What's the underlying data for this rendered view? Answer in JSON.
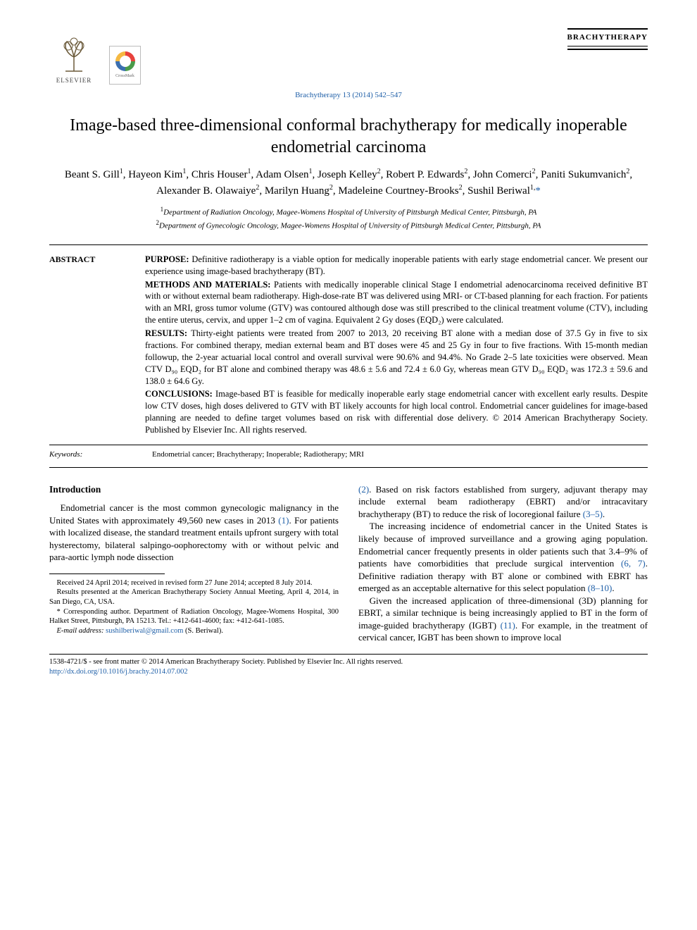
{
  "header": {
    "publisher_logo_text": "ELSEVIER",
    "crossmark_label": "CrossMark",
    "journal_banner": "BRACHYTHERAPY",
    "citation": "Brachytherapy 13 (2014) 542–547"
  },
  "title": "Image-based three-dimensional conformal brachytherapy for medically inoperable endometrial carcinoma",
  "authors_html": "Beant S. Gill<sup>1</sup>, Hayeon Kim<sup>1</sup>, Chris Houser<sup>1</sup>, Adam Olsen<sup>1</sup>, Joseph Kelley<sup>2</sup>, Robert P. Edwards<sup>2</sup>, John Comerci<sup>2</sup>, Paniti Sukumvanich<sup>2</sup>, Alexander B. Olawaiye<sup>2</sup>, Marilyn Huang<sup>2</sup>, Madeleine Courtney-Brooks<sup>2</sup>, Sushil Beriwal<sup>1,</sup><span class=\"star-corr\">*</span>",
  "affiliations": [
    {
      "num": "1",
      "text": "Department of Radiation Oncology, Magee-Womens Hospital of University of Pittsburgh Medical Center, Pittsburgh, PA"
    },
    {
      "num": "2",
      "text": "Department of Gynecologic Oncology, Magee-Womens Hospital of University of Pittsburgh Medical Center, Pittsburgh, PA"
    }
  ],
  "abstract": {
    "label": "ABSTRACT",
    "purpose": "Definitive radiotherapy is a viable option for medically inoperable patients with early stage endometrial cancer. We present our experience using image-based brachytherapy (BT).",
    "methods": "Patients with medically inoperable clinical Stage I endometrial adenocarcinoma received definitive BT with or without external beam radiotherapy. High-dose-rate BT was delivered using MRI- or CT-based planning for each fraction. For patients with an MRI, gross tumor volume (GTV) was contoured although dose was still prescribed to the clinical treatment volume (CTV), including the entire uterus, cervix, and upper 1–2 cm of vagina. Equivalent 2 Gy doses (EQD₂) were calculated.",
    "results": "Thirty-eight patients were treated from 2007 to 2013, 20 receiving BT alone with a median dose of 37.5 Gy in five to six fractions. For combined therapy, median external beam and BT doses were 45 and 25 Gy in four to five fractions. With 15-month median followup, the 2-year actuarial local control and overall survival were 90.6% and 94.4%. No Grade 2–5 late toxicities were observed. Mean CTV D₉₀ EQD₂ for BT alone and combined therapy was 48.6 ± 5.6 and 72.4 ± 6.0 Gy, whereas mean GTV D₉₀ EQD₂ was 172.3 ± 59.6 and 138.0 ± 64.6 Gy.",
    "conclusions": "Image-based BT is feasible for medically inoperable early stage endometrial cancer with excellent early results. Despite low CTV doses, high doses delivered to GTV with BT likely accounts for high local control. Endometrial cancer guidelines for image-based planning are needed to define target volumes based on risk with differential dose delivery. © 2014 American Brachytherapy Society. Published by Elsevier Inc. All rights reserved.",
    "keywords_label": "Keywords:",
    "keywords": "Endometrial cancer; Brachytherapy; Inoperable; Radiotherapy; MRI"
  },
  "introduction": {
    "heading": "Introduction",
    "col1_p1_a": "Endometrial cancer is the most common gynecologic malignancy in the United States with approximately 49,560 new cases in 2013 ",
    "col1_p1_ref1": "(1)",
    "col1_p1_b": ". For patients with localized disease, the standard treatment entails upfront surgery with total hysterectomy, bilateral salpingo-oophorectomy with or without pelvic and para-aortic lymph node dissection",
    "col2_p1_ref2": "(2)",
    "col2_p1_a": ". Based on risk factors established from surgery, adjuvant therapy may include external beam radiotherapy (EBRT) and/or intracavitary brachytherapy (BT) to reduce the risk of locoregional failure ",
    "col2_p1_ref35": "(3–5)",
    "col2_p1_b": ".",
    "col2_p2_a": "The increasing incidence of endometrial cancer in the United States is likely because of improved surveillance and a growing aging population. Endometrial cancer frequently presents in older patients such that 3.4–9% of patients have comorbidities that preclude surgical intervention ",
    "col2_p2_ref67": "(6, 7)",
    "col2_p2_b": ". Definitive radiation therapy with BT alone or combined with EBRT has emerged as an acceptable alternative for this select population ",
    "col2_p2_ref810": "(8–10)",
    "col2_p2_c": ".",
    "col2_p3_a": "Given the increased application of three-dimensional (3D) planning for EBRT, a similar technique is being increasingly applied to BT in the form of image-guided brachytherapy (IGBT) ",
    "col2_p3_ref11": "(11)",
    "col2_p3_b": ". For example, in the treatment of cervical cancer, IGBT has been shown to improve local"
  },
  "footnotes": {
    "received": "Received 24 April 2014; received in revised form 27 June 2014; accepted 8 July 2014.",
    "presented": "Results presented at the American Brachytherapy Society Annual Meeting, April 4, 2014, in San Diego, CA, USA.",
    "corresponding": "* Corresponding author. Department of Radiation Oncology, Magee-Womens Hospital, 300 Halket Street, Pittsburgh, PA 15213. Tel.: +412-641-4600; fax: +412-641-1085.",
    "email_label": "E-mail address:",
    "email": "sushilberiwal@gmail.com",
    "email_author": "(S. Beriwal)."
  },
  "footer": {
    "copyright": "1538-4721/$ - see front matter © 2014 American Brachytherapy Society. Published by Elsevier Inc. All rights reserved.",
    "doi": "http://dx.doi.org/10.1016/j.brachy.2014.07.002"
  },
  "colors": {
    "link": "#2060a8",
    "text": "#000000",
    "bg": "#ffffff"
  }
}
